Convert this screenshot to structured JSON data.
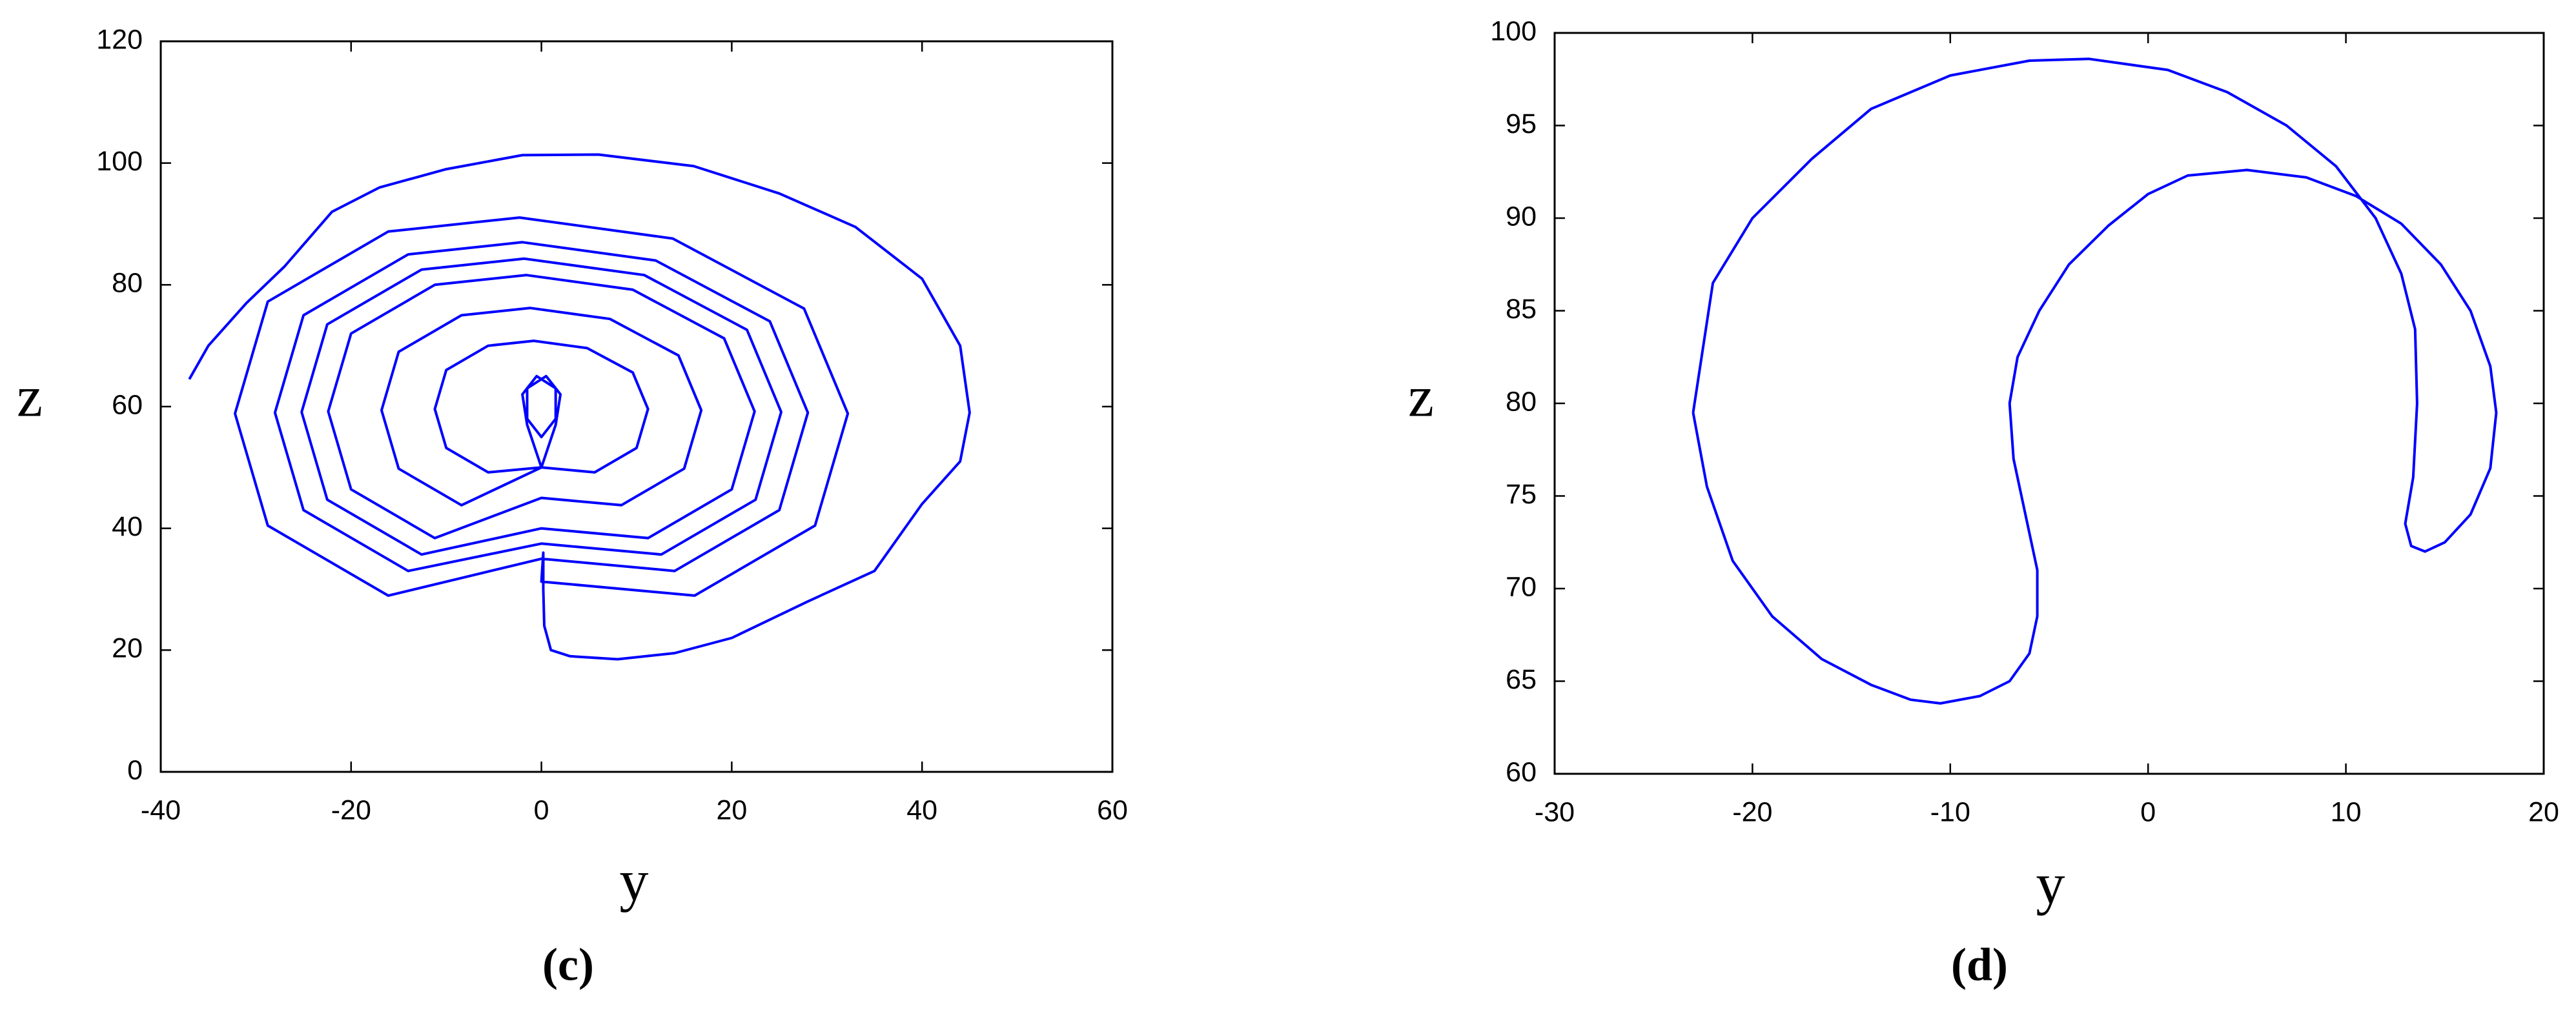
{
  "chart_data": [
    {
      "type": "line",
      "x_label": "y",
      "y_label": "z",
      "caption": "(c)",
      "color": "#0000ff",
      "xlim": [
        -40,
        60
      ],
      "ylim": [
        0,
        120
      ],
      "xticks": [
        -40,
        -20,
        0,
        20,
        40,
        60
      ],
      "yticks": [
        0,
        20,
        40,
        60,
        80,
        100,
        120
      ],
      "x": [
        -37,
        -35,
        -31,
        -27,
        -22,
        -17,
        -10,
        -2,
        6,
        16,
        25,
        33,
        40,
        44,
        45,
        44,
        40,
        35,
        28,
        20,
        14,
        8,
        3,
        1,
        0.3,
        0.2,
        0.2,
        0,
        16.1,
        28.75,
        32.2,
        27.6,
        13.8,
        -2.3,
        -16.1,
        -28.75,
        -32.2,
        -28.75,
        -16.1,
        0,
        14,
        25,
        28,
        24,
        12,
        -2,
        -14,
        -25,
        -28,
        -25,
        -14,
        0,
        12.6,
        22.5,
        25.2,
        21.6,
        10.8,
        -1.8,
        -12.6,
        -22.5,
        -25.2,
        -22.5,
        -12.6,
        0,
        11.2,
        20,
        22.4,
        19.2,
        9.6,
        -1.6,
        -11.2,
        -20,
        -22.4,
        -20,
        -11.2,
        0,
        8.4,
        15,
        16.8,
        14.4,
        7.2,
        -1.2,
        -8.4,
        -15,
        -16.8,
        -15,
        -8.4,
        0,
        5.6,
        10,
        11.2,
        9.6,
        4.8,
        -0.8,
        -5.6,
        -10,
        -11.2,
        -10,
        -5.6,
        0,
        1.5,
        2,
        0.5,
        -1.5,
        -1.5,
        0,
        1.5,
        1.5,
        -0.5,
        -2,
        -1.5,
        0
      ],
      "values": [
        64.5,
        70,
        77,
        83,
        92,
        96,
        99,
        101.3,
        101.4,
        99.5,
        95,
        89.5,
        81,
        70,
        59,
        51,
        44,
        33,
        28,
        22,
        19.5,
        18.5,
        19,
        20,
        24,
        30,
        36,
        31.25,
        28.95,
        40.45,
        58.85,
        76.1,
        87.6,
        91.05,
        88.75,
        77.25,
        58.85,
        40.45,
        28.95,
        35,
        33,
        43,
        59,
        74,
        84,
        87,
        85,
        75,
        59,
        43,
        33,
        37.5,
        35.7,
        44.7,
        59.1,
        72.6,
        81.6,
        84.3,
        82.5,
        73.5,
        59.1,
        44.7,
        35.7,
        40,
        38.4,
        46.4,
        59.2,
        71.2,
        79.2,
        81.6,
        80,
        72,
        59.2,
        46.4,
        38.4,
        45,
        43.8,
        49.8,
        59.4,
        68.4,
        74.4,
        76.2,
        75,
        69,
        59.4,
        49.8,
        43.8,
        50,
        49.2,
        53.2,
        59.6,
        65.6,
        69.6,
        70.8,
        70,
        66,
        59.6,
        53.2,
        49.2,
        50,
        57,
        62,
        65,
        63,
        58,
        55,
        58,
        63,
        65,
        62,
        57,
        50
      ]
    },
    {
      "type": "line",
      "x_label": "y",
      "y_label": "z",
      "caption": "(d)",
      "color": "#0000ff",
      "xlim": [
        -30,
        20
      ],
      "ylim": [
        60,
        100
      ],
      "xticks": [
        -30,
        -20,
        -10,
        0,
        10,
        20
      ],
      "yticks": [
        60,
        65,
        70,
        75,
        80,
        85,
        90,
        95,
        100
      ],
      "x": [
        -23,
        -22,
        -20,
        -17,
        -14,
        -10,
        -6,
        -3,
        1,
        4,
        7,
        9.5,
        11.5,
        12.8,
        13.5,
        13.6,
        13.4,
        13,
        13.3,
        14,
        15,
        16.3,
        17.3,
        17.6,
        17.3,
        16.3,
        14.8,
        12.8,
        10.5,
        8,
        5,
        2,
        0,
        -2,
        -4,
        -5.5,
        -6.6,
        -7,
        -6.8,
        -6.2,
        -5.6,
        -5.6,
        -6,
        -7,
        -8.5,
        -10.5,
        -12,
        -14,
        -16.5,
        -19,
        -21,
        -22.3,
        -23
      ],
      "values": [
        79.5,
        86.5,
        90,
        93.2,
        95.9,
        97.7,
        98.5,
        98.6,
        98,
        96.8,
        95,
        92.8,
        90,
        87,
        84,
        80,
        76,
        73.5,
        72.3,
        72,
        72.5,
        74,
        76.5,
        79.5,
        82,
        85,
        87.5,
        89.7,
        91.2,
        92.2,
        92.6,
        92.3,
        91.3,
        89.6,
        87.5,
        85,
        82.5,
        80,
        77,
        74,
        71,
        68.5,
        66.5,
        65,
        64.2,
        63.8,
        64,
        64.8,
        66.2,
        68.5,
        71.5,
        75.5,
        79.5
      ]
    }
  ]
}
